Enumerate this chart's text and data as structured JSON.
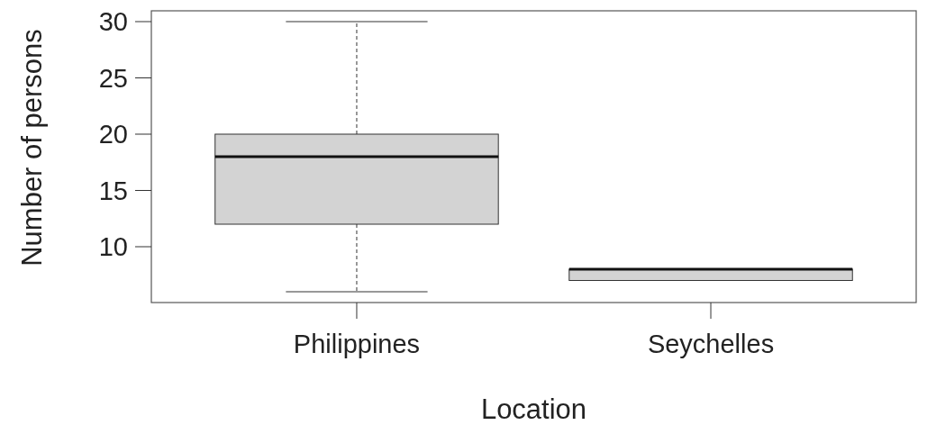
{
  "chart_data": {
    "type": "box",
    "xlabel": "Location",
    "ylabel": "Number of persons",
    "categories": [
      "Philippines",
      "Seychelles"
    ],
    "boxes": [
      {
        "low": 6,
        "q1": 12,
        "median": 18,
        "q3": 20,
        "high": 30
      },
      {
        "low": 7,
        "q1": 7,
        "median": 8,
        "q3": 8,
        "high": 8
      }
    ],
    "color": "#d3d3d3",
    "ylim": [
      5.04,
      30.96
    ],
    "yticks": [
      10,
      15,
      20,
      25,
      30
    ],
    "grid": false
  }
}
